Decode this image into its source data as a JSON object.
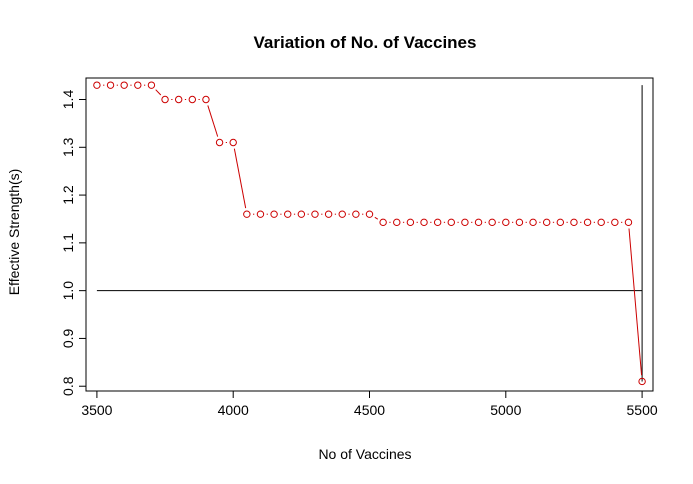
{
  "chart_data": {
    "type": "line",
    "title": "Variation of No. of Vaccines",
    "xlabel": "No of Vaccines",
    "ylabel": "Effective Strength(s)",
    "xlim": [
      3460,
      5540
    ],
    "ylim": [
      0.79,
      1.445
    ],
    "x_ticks": [
      3500,
      4000,
      4500,
      5000,
      5500
    ],
    "y_ticks": [
      0.8,
      0.9,
      1.0,
      1.1,
      1.2,
      1.3,
      1.4
    ],
    "x_tick_labels": [
      "3500",
      "4000",
      "4500",
      "5000",
      "5500"
    ],
    "y_tick_labels": [
      "0.8",
      "0.9",
      "1.0",
      "1.1",
      "1.2",
      "1.3",
      "1.4"
    ],
    "grid": false,
    "series": [
      {
        "type": "points-and-lines",
        "color": "#cc0000",
        "x": [
          3500,
          3550,
          3600,
          3650,
          3700,
          3750,
          3800,
          3850,
          3900,
          3950,
          4000,
          4050,
          4100,
          4150,
          4200,
          4250,
          4300,
          4350,
          4400,
          4450,
          4500,
          4550,
          4600,
          4650,
          4700,
          4750,
          4800,
          4850,
          4900,
          4950,
          5000,
          5050,
          5100,
          5150,
          5200,
          5250,
          5300,
          5350,
          5400,
          5450,
          5500
        ],
        "y": [
          1.43,
          1.43,
          1.43,
          1.43,
          1.43,
          1.4,
          1.4,
          1.4,
          1.4,
          1.31,
          1.31,
          1.16,
          1.16,
          1.16,
          1.16,
          1.16,
          1.16,
          1.16,
          1.16,
          1.16,
          1.16,
          1.143,
          1.143,
          1.143,
          1.143,
          1.143,
          1.143,
          1.143,
          1.143,
          1.143,
          1.143,
          1.143,
          1.143,
          1.143,
          1.143,
          1.143,
          1.143,
          1.143,
          1.143,
          1.143,
          0.81
        ]
      }
    ],
    "reference_lines": [
      {
        "orientation": "horizontal",
        "y": 1.0,
        "x_from": 3500,
        "x_to": 5500,
        "color": "#000000"
      },
      {
        "orientation": "vertical",
        "x": 5500,
        "y_from": 0.81,
        "y_to": 1.43,
        "color": "#000000"
      }
    ]
  }
}
